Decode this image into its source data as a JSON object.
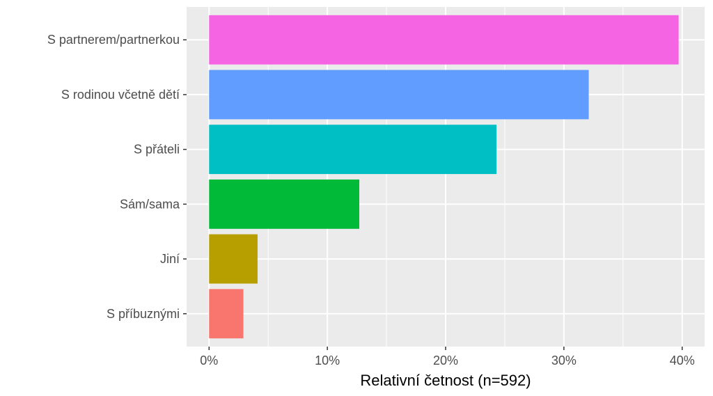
{
  "chart_data": {
    "type": "bar",
    "orientation": "horizontal",
    "categories": [
      "S partnerem/partnerkou",
      "S rodinou včetně dětí",
      "S přáteli",
      "Sám/sama",
      "Jiní",
      "S příbuznými"
    ],
    "values": [
      39.7,
      32.1,
      24.3,
      12.7,
      4.1,
      2.9
    ],
    "colors": [
      "#F564E3",
      "#619CFF",
      "#00BFC4",
      "#00BA38",
      "#B79F00",
      "#F8766D"
    ],
    "xlabel": "Relativní četnost (n=592)",
    "ylabel": "",
    "xlim": [
      -1.9,
      41.9
    ],
    "x_ticks": [
      0,
      10,
      20,
      30,
      40
    ],
    "x_tick_labels": [
      "0%",
      "10%",
      "20%",
      "30%",
      "40%"
    ],
    "grid": true,
    "panel_background": "#EBEBEB",
    "grid_color": "#FFFFFF"
  }
}
